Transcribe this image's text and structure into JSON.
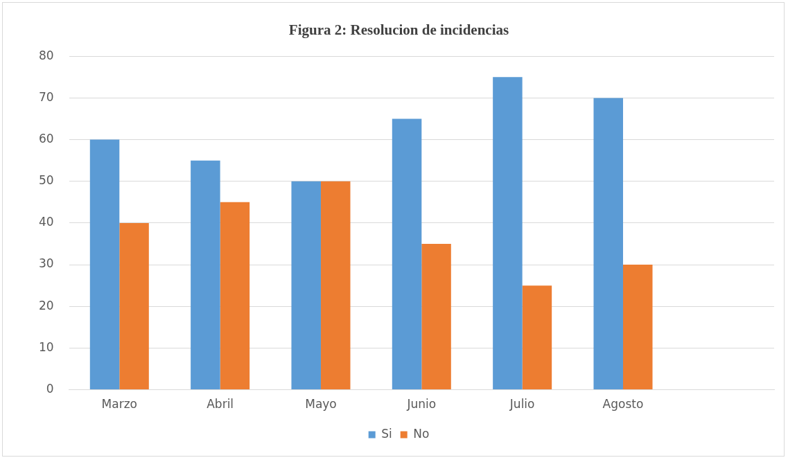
{
  "chart_data": {
    "type": "bar",
    "title": "Figura 2: Resolucion de incidencias",
    "categories": [
      "Marzo",
      "Abril",
      "Mayo",
      "Junio",
      "Julio",
      "Agosto",
      null
    ],
    "series": [
      {
        "name": "Si",
        "color": "#5b9bd5",
        "values": [
          60,
          55,
          50,
          65,
          75,
          70,
          null
        ]
      },
      {
        "name": "No",
        "color": "#ed7d31",
        "values": [
          40,
          45,
          50,
          35,
          25,
          30,
          null
        ]
      }
    ],
    "ylim": [
      0,
      80
    ],
    "yticks": [
      0,
      10,
      20,
      30,
      40,
      50,
      60,
      70,
      80
    ],
    "grid": "y",
    "legend": "bottom"
  }
}
